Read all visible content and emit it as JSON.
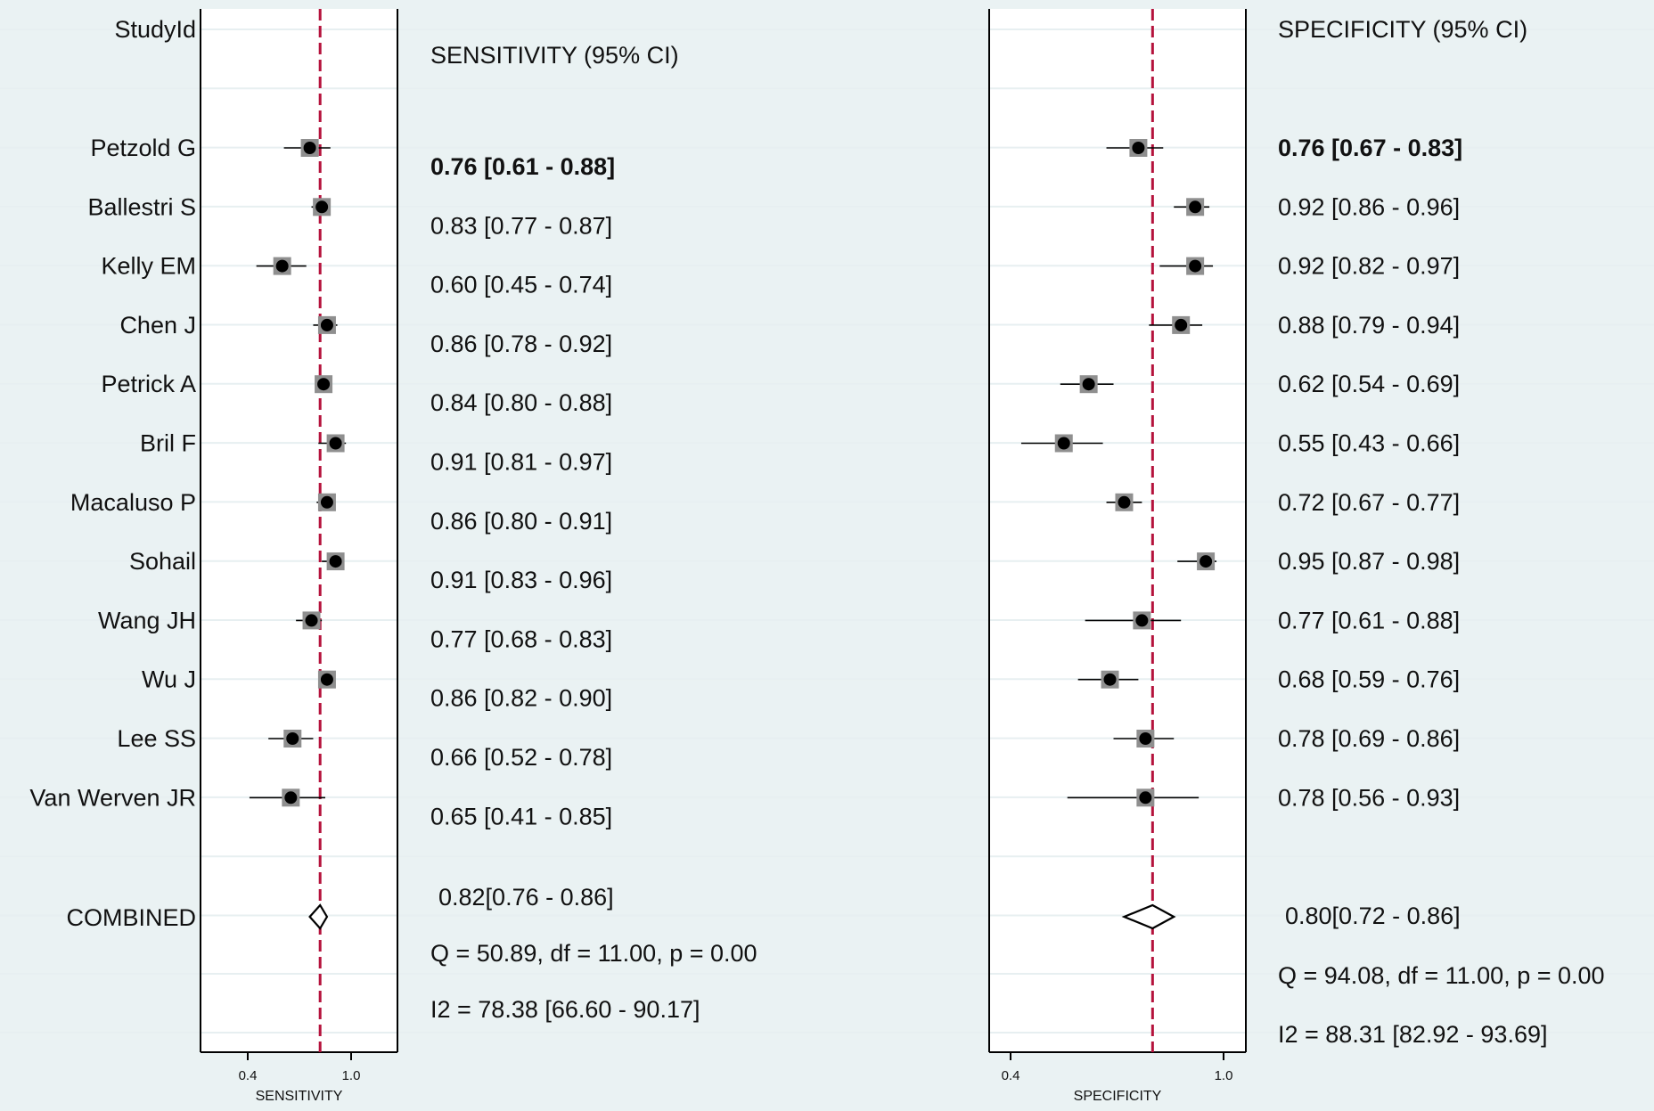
{
  "chart_data": {
    "type": "forest",
    "header_study": "StudyId",
    "studies": [
      "Petzold G",
      "Ballestri S",
      "Kelly EM",
      "Chen J",
      "Petrick A",
      "Bril F",
      "Macaluso P",
      "Sohail",
      "Wang JH",
      "Wu J",
      "Lee SS",
      "Van Werven JR"
    ],
    "combined_label": "COMBINED",
    "panels": [
      {
        "name": "SENSITIVITY",
        "header": "SENSITIVITY (95% CI)",
        "xlabel": "SENSITIVITY",
        "ticks": [
          {
            "value": 0.4,
            "label": "0.4"
          },
          {
            "value": 1.0,
            "label": "1.0"
          }
        ],
        "pooled": 0.82,
        "values": [
          0.76,
          0.83,
          0.6,
          0.86,
          0.84,
          0.91,
          0.86,
          0.91,
          0.77,
          0.86,
          0.66,
          0.65
        ],
        "ci_low": [
          0.61,
          0.77,
          0.45,
          0.78,
          0.8,
          0.81,
          0.8,
          0.83,
          0.68,
          0.82,
          0.52,
          0.41
        ],
        "ci_high": [
          0.88,
          0.87,
          0.74,
          0.92,
          0.88,
          0.97,
          0.91,
          0.96,
          0.83,
          0.9,
          0.78,
          0.85
        ],
        "labels": [
          "0.76 [0.61 - 0.88]",
          "0.83 [0.77 - 0.87]",
          "0.60 [0.45 - 0.74]",
          "0.86 [0.78 - 0.92]",
          "0.84 [0.80 - 0.88]",
          "0.91 [0.81 - 0.97]",
          "0.86 [0.80 - 0.91]",
          "0.91 [0.83 - 0.96]",
          "0.77 [0.68 - 0.83]",
          "0.86 [0.82 - 0.90]",
          "0.66 [0.52 - 0.78]",
          "0.65 [0.41 - 0.85]"
        ],
        "combined": {
          "value": 0.82,
          "ci_low": 0.76,
          "ci_high": 0.86,
          "label": "0.82[0.76 - 0.86]"
        },
        "heterogeneity": "Q = 50.89, df = 11.00, p =  0.00",
        "i2": "I2 = 78.38 [66.60 - 90.17]"
      },
      {
        "name": "SPECIFICITY",
        "header": "SPECIFICITY (95% CI)",
        "xlabel": "SPECIFICITY",
        "ticks": [
          {
            "value": 0.4,
            "label": "0.4"
          },
          {
            "value": 1.0,
            "label": "1.0"
          }
        ],
        "pooled": 0.8,
        "values": [
          0.76,
          0.92,
          0.92,
          0.88,
          0.62,
          0.55,
          0.72,
          0.95,
          0.77,
          0.68,
          0.78,
          0.78
        ],
        "ci_low": [
          0.67,
          0.86,
          0.82,
          0.79,
          0.54,
          0.43,
          0.67,
          0.87,
          0.61,
          0.59,
          0.69,
          0.56
        ],
        "ci_high": [
          0.83,
          0.96,
          0.97,
          0.94,
          0.69,
          0.66,
          0.77,
          0.98,
          0.88,
          0.76,
          0.86,
          0.93
        ],
        "labels": [
          "0.76 [0.67 - 0.83]",
          "0.92 [0.86 - 0.96]",
          "0.92 [0.82 - 0.97]",
          "0.88 [0.79 - 0.94]",
          "0.62 [0.54 - 0.69]",
          "0.55 [0.43 - 0.66]",
          "0.72 [0.67 - 0.77]",
          "0.95 [0.87 - 0.98]",
          "0.77 [0.61 - 0.88]",
          "0.68 [0.59 - 0.76]",
          "0.78 [0.69 - 0.86]",
          "0.78 [0.56 - 0.93]"
        ],
        "combined": {
          "value": 0.8,
          "ci_low": 0.72,
          "ci_high": 0.86,
          "label": "0.80[0.72 - 0.86]"
        },
        "heterogeneity": "Q = 94.08, df = 11.00, p =  0.00",
        "i2": "I2 = 88.31 [82.92 - 93.69]"
      }
    ]
  },
  "colors": {
    "background": "#eaf2f3",
    "plot_background": "#ffffff",
    "gridline": "#e7eff1",
    "pooled_line": "#b5123c",
    "marker": "#000000",
    "weight_box": "#8f8f8f"
  }
}
